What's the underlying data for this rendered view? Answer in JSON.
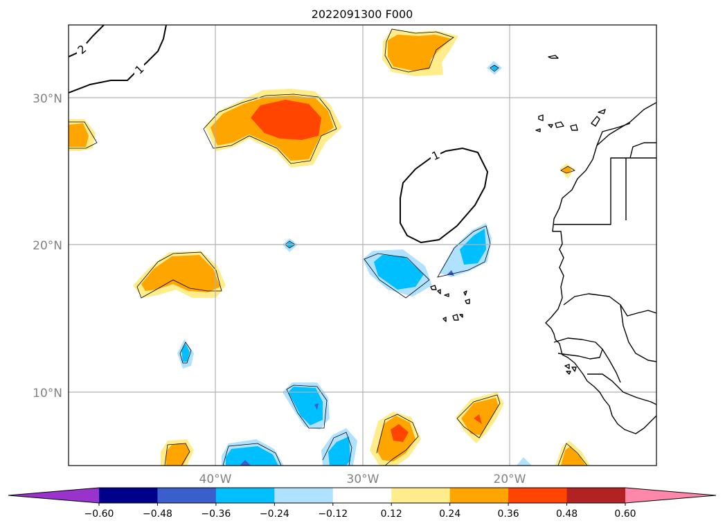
{
  "title": "2022091300 F000",
  "lat_labels": [
    "30°N",
    "20°N",
    "10°N"
  ],
  "lon_labels": [
    "40°W",
    "30°W",
    "20°W"
  ],
  "contour_labels": [
    "2",
    "1",
    "1"
  ],
  "colorbar": {
    "tick_labels": [
      "−0.60",
      "−0.48",
      "−0.36",
      "−0.24",
      "−0.12",
      "0.12",
      "0.24",
      "0.36",
      "0.48",
      "0.60"
    ],
    "colors": [
      "#9933cc",
      "#00008b",
      "#3a5fcd",
      "#00bfff",
      "#b0e2ff",
      "#ffffff",
      "#ffec8b",
      "#ffa500",
      "#ff4500",
      "#b22222",
      "#ff88aa"
    ],
    "extend": "both"
  },
  "colors": {
    "light_yellow": "#ffec8b",
    "orange": "#ffa500",
    "red_orange": "#ff4500",
    "light_blue": "#b0e2ff",
    "deep_sky_blue": "#00bfff",
    "royal_blue": "#3a5fcd"
  }
}
